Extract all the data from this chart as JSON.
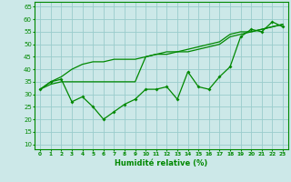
{
  "title": "",
  "xlabel": "Humidité relative (%)",
  "ylabel": "",
  "background_color": "#cce8e8",
  "grid_color": "#99cccc",
  "line_color": "#008800",
  "xlim": [
    -0.5,
    23.5
  ],
  "ylim": [
    8,
    67
  ],
  "yticks": [
    10,
    15,
    20,
    25,
    30,
    35,
    40,
    45,
    50,
    55,
    60,
    65
  ],
  "xticks": [
    0,
    1,
    2,
    3,
    4,
    5,
    6,
    7,
    8,
    9,
    10,
    11,
    12,
    13,
    14,
    15,
    16,
    17,
    18,
    19,
    20,
    21,
    22,
    23
  ],
  "line1": [
    32,
    35,
    37,
    40,
    42,
    43,
    43,
    44,
    44,
    44,
    45,
    46,
    46,
    47,
    47,
    48,
    49,
    50,
    53,
    54,
    55,
    56,
    57,
    58
  ],
  "line2": [
    32,
    35,
    36,
    27,
    29,
    25,
    20,
    23,
    26,
    28,
    32,
    32,
    33,
    28,
    39,
    33,
    32,
    37,
    41,
    53,
    56,
    55,
    59,
    57
  ],
  "line3": [
    32,
    34,
    35,
    35,
    35,
    35,
    35,
    35,
    35,
    35,
    45,
    46,
    47,
    47,
    48,
    49,
    50,
    51,
    54,
    55,
    55,
    56,
    57,
    58
  ]
}
